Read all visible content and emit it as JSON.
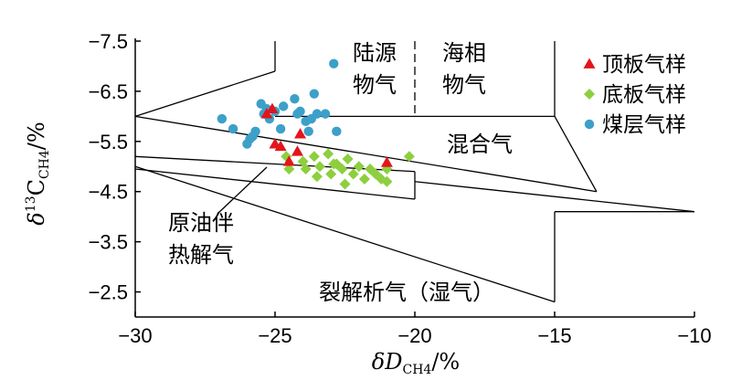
{
  "chart_data": {
    "type": "scatter",
    "xlabel": "δD",
    "xlabel_sub": "CH4",
    "xlabel_unit": "/%",
    "ylabel_prefix": "δ",
    "ylabel_sup": "13",
    "ylabel_main": "C",
    "ylabel_sub": "CH4",
    "ylabel_unit": "/%",
    "xlim": [
      -30,
      -10
    ],
    "ylim": [
      -7.5,
      -2
    ],
    "y_axis_inverted": true,
    "x_ticks": [
      "−30",
      "−25",
      "−20",
      "−15",
      "−10"
    ],
    "y_ticks": [
      "−7.5",
      "−6.5",
      "−5.5",
      "−4.5",
      "−3.5",
      "−2.5"
    ],
    "x_tick_values": [
      -30,
      -25,
      -20,
      -15,
      -10
    ],
    "y_tick_values": [
      -7.5,
      -6.5,
      -5.5,
      -4.5,
      -3.5,
      -2.5
    ],
    "grid": false,
    "legend_position": "top-right",
    "series": [
      {
        "name": "顶板气样",
        "marker": "triangle",
        "color": "#e3151a",
        "points": [
          [
            -25.3,
            -6.05
          ],
          [
            -25.1,
            -6.15
          ],
          [
            -25.0,
            -5.45
          ],
          [
            -24.8,
            -5.4
          ],
          [
            -24.5,
            -5.1
          ],
          [
            -24.2,
            -5.3
          ],
          [
            -24.1,
            -5.65
          ],
          [
            -21.0,
            -5.08
          ]
        ]
      },
      {
        "name": "底板气样",
        "marker": "diamond",
        "color": "#8dcf3f",
        "points": [
          [
            -24.6,
            -5.2
          ],
          [
            -24.5,
            -4.95
          ],
          [
            -24.0,
            -5.1
          ],
          [
            -23.9,
            -4.95
          ],
          [
            -23.6,
            -5.2
          ],
          [
            -23.4,
            -5.0
          ],
          [
            -23.1,
            -5.25
          ],
          [
            -23.0,
            -4.85
          ],
          [
            -22.8,
            -5.05
          ],
          [
            -22.6,
            -4.95
          ],
          [
            -22.4,
            -5.15
          ],
          [
            -22.2,
            -4.85
          ],
          [
            -22.0,
            -5.0
          ],
          [
            -21.8,
            -4.75
          ],
          [
            -21.6,
            -4.95
          ],
          [
            -21.4,
            -4.85
          ],
          [
            -21.0,
            -4.95
          ],
          [
            -21.0,
            -4.7
          ],
          [
            -20.2,
            -5.2
          ],
          [
            -23.5,
            -4.8
          ],
          [
            -22.9,
            -5.05
          ],
          [
            -22.5,
            -4.65
          ],
          [
            -21.2,
            -4.75
          ]
        ]
      },
      {
        "name": "煤层气样",
        "marker": "circle",
        "color": "#3ca0c8",
        "points": [
          [
            -22.9,
            -7.05
          ],
          [
            -26.9,
            -5.95
          ],
          [
            -26.5,
            -5.75
          ],
          [
            -26.0,
            -5.45
          ],
          [
            -25.8,
            -5.6
          ],
          [
            -25.7,
            -5.7
          ],
          [
            -25.5,
            -6.25
          ],
          [
            -25.4,
            -6.05
          ],
          [
            -25.2,
            -5.95
          ],
          [
            -25.0,
            -6.1
          ],
          [
            -24.7,
            -6.2
          ],
          [
            -24.3,
            -6.35
          ],
          [
            -24.1,
            -6.1
          ],
          [
            -23.9,
            -5.9
          ],
          [
            -23.6,
            -6.45
          ],
          [
            -23.5,
            -6.05
          ],
          [
            -23.2,
            -6.05
          ],
          [
            -22.8,
            -5.7
          ],
          [
            -24.2,
            -6.05
          ],
          [
            -23.7,
            -5.95
          ],
          [
            -23.8,
            -5.7
          ],
          [
            -25.9,
            -5.55
          ],
          [
            -25.3,
            -6.15
          ],
          [
            -24.8,
            -5.75
          ]
        ]
      }
    ],
    "regions": [
      {
        "id": "continental",
        "lines": [
          "陆源",
          "物气"
        ]
      },
      {
        "id": "marine",
        "lines": [
          "海相",
          "物气"
        ]
      },
      {
        "id": "mixed",
        "lines": [
          "混合气"
        ]
      },
      {
        "id": "oil-associated",
        "lines": [
          "原油伴",
          "热解气"
        ]
      },
      {
        "id": "cracking",
        "lines": [
          "裂解析气（湿气）"
        ]
      }
    ],
    "boundary_lines": {
      "outer_upper": [
        [
          -30,
          -6.0
        ],
        [
          -25,
          -6.9
        ]
      ],
      "left_box_outer": [
        [
          -25,
          -6.9
        ],
        [
          -25,
          -7.5
        ]
      ],
      "thermogenic_top": [
        [
          -25,
          -6.0
        ],
        [
          -15,
          -6.0
        ]
      ],
      "bio_divider": [
        [
          -20,
          -7.5
        ],
        [
          -20,
          -6.0
        ]
      ],
      "right_box": [
        [
          -15,
          -7.5
        ],
        [
          -15,
          -6.0
        ]
      ],
      "mixed_upper": [
        [
          -30,
          -6.0
        ],
        [
          -13.5,
          -4.5
        ]
      ],
      "mixed_right": [
        [
          -15,
          -6.0
        ],
        [
          -13.5,
          -4.5
        ]
      ],
      "oil_upper": [
        [
          -30,
          -5.2
        ],
        [
          -20,
          -4.9
        ]
      ],
      "oil_lower": [
        [
          -30,
          -4.95
        ],
        [
          -20,
          -4.35
        ]
      ],
      "oil_right": [
        [
          -20,
          -4.9
        ],
        [
          -20,
          -4.35
        ]
      ],
      "crack_lower": [
        [
          -30,
          -5.0
        ],
        [
          -15,
          -2.3
        ]
      ],
      "crack_right": [
        [
          -15,
          -2.3
        ],
        [
          -15,
          -4.1
        ]
      ],
      "crack_top": [
        [
          -15,
          -4.1
        ],
        [
          -10,
          -4.1
        ]
      ],
      "crack_tip": [
        [
          -10,
          -4.1
        ],
        [
          -20,
          -4.7
        ]
      ]
    }
  }
}
